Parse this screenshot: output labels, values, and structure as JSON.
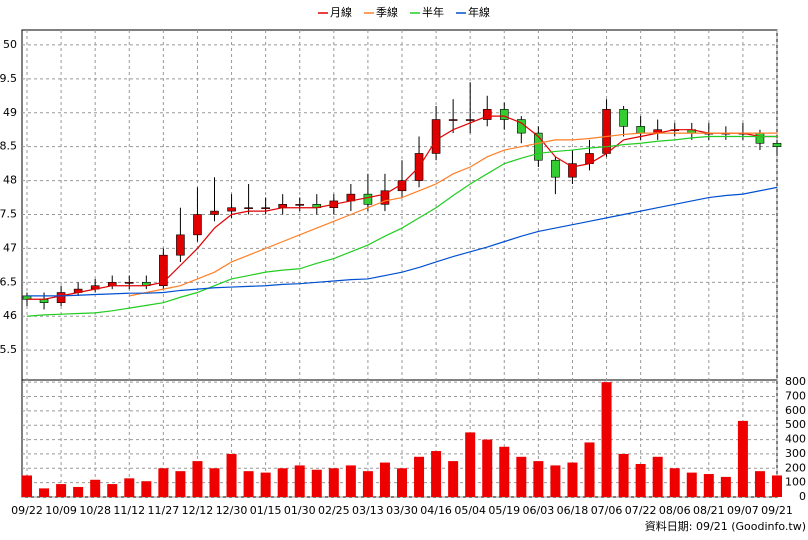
{
  "chart_data": [
    {
      "type": "candlestick",
      "legend": "top",
      "grid": true,
      "up_color": "#e00000",
      "down_color": "#33cc33",
      "categories": [
        "09/22",
        null,
        "10/09",
        null,
        "10/28",
        null,
        "11/12",
        null,
        "11/27",
        null,
        "12/12",
        null,
        "12/30",
        null,
        "01/15",
        null,
        "01/30",
        null,
        "02/25",
        null,
        "03/13",
        null,
        "03/30",
        null,
        "04/16",
        null,
        "05/04",
        null,
        "05/19",
        null,
        "06/03",
        null,
        "06/18",
        null,
        "07/06",
        null,
        "07/22",
        null,
        "08/06",
        null,
        "08/21",
        null,
        "09/07",
        null,
        "09/21"
      ],
      "open": [
        46.3,
        46.25,
        46.2,
        46.35,
        46.4,
        46.45,
        46.5,
        46.5,
        46.45,
        46.9,
        47.2,
        47.5,
        47.55,
        47.6,
        47.6,
        47.6,
        47.65,
        47.65,
        47.6,
        47.7,
        47.8,
        47.65,
        47.85,
        48.0,
        48.4,
        48.9,
        48.9,
        48.9,
        49.05,
        48.9,
        48.7,
        48.3,
        48.05,
        48.25,
        48.4,
        49.05,
        48.8,
        48.7,
        48.75,
        48.75,
        48.7,
        48.7,
        48.7,
        48.7,
        48.55
      ],
      "high": [
        46.35,
        46.35,
        46.45,
        46.5,
        46.55,
        46.6,
        46.6,
        46.6,
        47.0,
        47.6,
        47.9,
        48.05,
        47.8,
        47.95,
        47.75,
        47.8,
        47.75,
        47.8,
        47.8,
        47.95,
        48.1,
        48.1,
        48.3,
        48.65,
        49.1,
        49.2,
        49.45,
        49.25,
        49.15,
        48.95,
        48.8,
        48.35,
        48.45,
        48.6,
        49.2,
        49.1,
        48.95,
        48.9,
        48.85,
        48.85,
        48.85,
        48.8,
        48.85,
        48.75,
        48.6
      ],
      "low": [
        46.15,
        46.1,
        46.15,
        46.3,
        46.35,
        46.4,
        46.4,
        46.4,
        46.4,
        46.8,
        47.1,
        47.4,
        47.45,
        47.5,
        47.5,
        47.5,
        47.55,
        47.5,
        47.5,
        47.55,
        47.55,
        47.55,
        47.75,
        47.9,
        48.3,
        48.7,
        48.7,
        48.8,
        48.75,
        48.55,
        48.2,
        47.8,
        47.95,
        48.15,
        48.35,
        48.65,
        48.6,
        48.6,
        48.65,
        48.6,
        48.6,
        48.6,
        48.6,
        48.45,
        48.4
      ],
      "close": [
        46.25,
        46.2,
        46.35,
        46.4,
        46.45,
        46.5,
        46.5,
        46.45,
        46.9,
        47.2,
        47.5,
        47.55,
        47.6,
        47.6,
        47.6,
        47.65,
        47.65,
        47.6,
        47.7,
        47.8,
        47.65,
        47.85,
        48.0,
        48.4,
        48.9,
        48.9,
        48.9,
        49.05,
        48.9,
        48.7,
        48.3,
        48.05,
        48.25,
        48.4,
        49.05,
        48.8,
        48.7,
        48.75,
        48.75,
        48.7,
        48.7,
        48.7,
        48.7,
        48.55,
        48.5
      ],
      "series": [
        {
          "name": "月線",
          "color": "#e00000",
          "values": [
            46.25,
            46.25,
            46.3,
            46.35,
            46.4,
            46.45,
            46.45,
            46.45,
            46.5,
            46.75,
            47.0,
            47.3,
            47.5,
            47.55,
            47.55,
            47.6,
            47.6,
            47.6,
            47.65,
            47.7,
            47.75,
            47.8,
            47.95,
            48.2,
            48.6,
            48.75,
            48.85,
            48.95,
            48.95,
            48.85,
            48.65,
            48.35,
            48.2,
            48.25,
            48.4,
            48.6,
            48.65,
            48.7,
            48.75,
            48.75,
            48.7,
            48.7,
            48.7,
            48.65,
            48.65
          ]
        },
        {
          "name": "季線",
          "color": "#ff7f27",
          "values": [
            null,
            null,
            null,
            null,
            null,
            null,
            46.3,
            46.35,
            46.4,
            46.45,
            46.55,
            46.65,
            46.8,
            46.9,
            47.0,
            47.1,
            47.2,
            47.3,
            47.4,
            47.5,
            47.6,
            47.7,
            47.75,
            47.85,
            47.95,
            48.1,
            48.2,
            48.35,
            48.45,
            48.5,
            48.55,
            48.6,
            48.6,
            48.62,
            48.65,
            48.68,
            48.7,
            48.7,
            48.7,
            48.7,
            48.7,
            48.7,
            48.7,
            48.7,
            48.7
          ]
        },
        {
          "name": "半年",
          "color": "#22cc22",
          "values": [
            46.0,
            46.02,
            46.03,
            46.04,
            46.05,
            46.08,
            46.12,
            46.16,
            46.2,
            46.28,
            46.35,
            46.45,
            46.55,
            46.6,
            46.65,
            46.68,
            46.7,
            46.78,
            46.85,
            46.95,
            47.05,
            47.18,
            47.3,
            47.45,
            47.6,
            47.78,
            47.95,
            48.1,
            48.25,
            48.33,
            48.4,
            48.43,
            48.45,
            48.48,
            48.5,
            48.53,
            48.55,
            48.58,
            48.6,
            48.63,
            48.65,
            48.65,
            48.65,
            48.65,
            48.65
          ]
        },
        {
          "name": "年線",
          "color": "#0050d0",
          "values": [
            46.3,
            46.3,
            46.3,
            46.31,
            46.32,
            46.33,
            46.34,
            46.34,
            46.35,
            46.38,
            46.4,
            46.42,
            46.43,
            46.44,
            46.45,
            46.47,
            46.48,
            46.5,
            46.52,
            46.54,
            46.55,
            46.6,
            46.65,
            46.72,
            46.8,
            46.88,
            46.95,
            47.02,
            47.1,
            47.18,
            47.25,
            47.3,
            47.35,
            47.4,
            47.45,
            47.5,
            47.55,
            47.6,
            47.65,
            47.7,
            47.75,
            47.78,
            47.8,
            47.85,
            47.9
          ]
        }
      ],
      "ylim": [
        45.06,
        50.22
      ],
      "yticks": [
        {
          "value": 45.5,
          "label": "5.5"
        },
        46,
        {
          "value": 46.5,
          "label": "6.5"
        },
        47,
        {
          "value": 47.5,
          "label": "7.5"
        },
        48,
        {
          "value": 48.5,
          "label": "8.5"
        },
        49,
        {
          "value": 49.5,
          "label": "9.5"
        },
        50
      ],
      "note": "資料日期: 09/21  (Goodinfo.tw)"
    },
    {
      "type": "bar",
      "grid": true,
      "color": "#ee0000",
      "values": [
        150,
        60,
        90,
        70,
        120,
        90,
        130,
        110,
        200,
        180,
        250,
        200,
        300,
        180,
        170,
        200,
        220,
        190,
        200,
        220,
        180,
        240,
        200,
        280,
        320,
        250,
        450,
        400,
        350,
        280,
        250,
        220,
        240,
        380,
        800,
        300,
        230,
        280,
        200,
        170,
        160,
        140,
        530,
        180,
        150
      ],
      "ylim": [
        0,
        815
      ],
      "yticks": [
        0,
        100,
        200,
        300,
        400,
        500,
        600,
        700,
        800
      ]
    }
  ]
}
